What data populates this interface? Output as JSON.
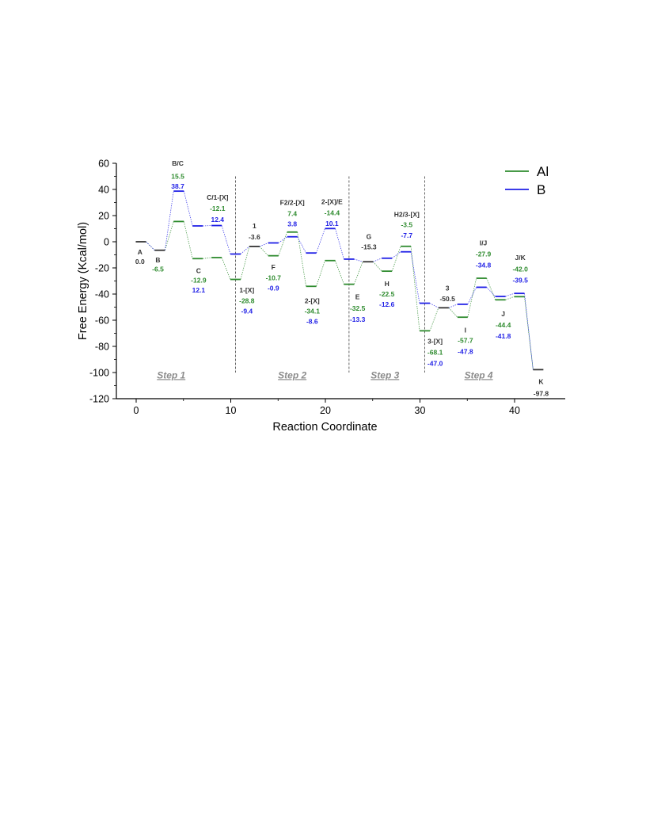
{
  "chart_data": {
    "type": "line",
    "title": "",
    "xlabel": "Reaction Coordinate",
    "ylabel": "Free Energy (Kcal/mol)",
    "xlim": [
      -1.5,
      45
    ],
    "ylim": [
      -120,
      60
    ],
    "xticks": [
      0,
      10,
      20,
      30,
      40
    ],
    "yticks": [
      60,
      40,
      20,
      0,
      -20,
      -40,
      -60,
      -80,
      -100,
      -120
    ],
    "step_dividers": [
      10.5,
      22.5,
      30.5
    ],
    "steps": [
      {
        "label": "Step 1",
        "x": 3.7,
        "y": -102
      },
      {
        "label": "Step 2",
        "x": 16.5,
        "y": -102
      },
      {
        "label": "Step 3",
        "x": 26.3,
        "y": -102
      },
      {
        "label": "Step 4",
        "x": 36.2,
        "y": -102
      }
    ],
    "colors": {
      "Al": "#2e8b2e",
      "B": "#1f1fe6",
      "common": "#333333"
    },
    "legend": {
      "placement": "top-right",
      "entries": [
        {
          "name": "Al",
          "color": "#2e8b2e"
        },
        {
          "name": "B",
          "color": "#1f1fe6"
        }
      ]
    },
    "series": [
      {
        "name": "Al",
        "color": "#2e8b2e",
        "levels": [
          {
            "x": 0.5,
            "y": 0
          },
          {
            "x": 2.5,
            "y": -6.5
          },
          {
            "x": 4.5,
            "y": 15.5
          },
          {
            "x": 6.5,
            "y": -12.9
          },
          {
            "x": 8.5,
            "y": -12.1
          },
          {
            "x": 10.5,
            "y": -28.8
          },
          {
            "x": 12.5,
            "y": -3.6
          },
          {
            "x": 14.5,
            "y": -10.7
          },
          {
            "x": 16.5,
            "y": 7.4
          },
          {
            "x": 18.5,
            "y": -34.1
          },
          {
            "x": 20.5,
            "y": -14.4
          },
          {
            "x": 22.5,
            "y": -32.5
          },
          {
            "x": 24.5,
            "y": -15.3
          },
          {
            "x": 26.5,
            "y": -22.5
          },
          {
            "x": 28.5,
            "y": -3.5
          },
          {
            "x": 30.5,
            "y": -68.1
          },
          {
            "x": 32.5,
            "y": -50.5
          },
          {
            "x": 34.5,
            "y": -57.7
          },
          {
            "x": 36.5,
            "y": -27.9
          },
          {
            "x": 38.5,
            "y": -44.4
          },
          {
            "x": 40.5,
            "y": -42.0
          },
          {
            "x": 42.5,
            "y": -97.8
          }
        ]
      },
      {
        "name": "B",
        "color": "#1f1fe6",
        "levels": [
          {
            "x": 0.5,
            "y": 0
          },
          {
            "x": 2.5,
            "y": -6.5
          },
          {
            "x": 4.5,
            "y": 38.7
          },
          {
            "x": 6.5,
            "y": 12.1
          },
          {
            "x": 8.5,
            "y": 12.4
          },
          {
            "x": 10.5,
            "y": -9.4
          },
          {
            "x": 12.5,
            "y": -3.6
          },
          {
            "x": 14.5,
            "y": -0.9
          },
          {
            "x": 16.5,
            "y": 3.8
          },
          {
            "x": 18.5,
            "y": -8.6
          },
          {
            "x": 20.5,
            "y": 10.1
          },
          {
            "x": 22.5,
            "y": -13.3
          },
          {
            "x": 24.5,
            "y": -15.3
          },
          {
            "x": 26.5,
            "y": -12.6
          },
          {
            "x": 28.5,
            "y": -7.7
          },
          {
            "x": 30.5,
            "y": -47.0
          },
          {
            "x": 32.5,
            "y": -50.5
          },
          {
            "x": 34.5,
            "y": -47.8
          },
          {
            "x": 36.5,
            "y": -34.8
          },
          {
            "x": 38.5,
            "y": -41.8
          },
          {
            "x": 40.5,
            "y": -39.5
          },
          {
            "x": 42.5,
            "y": -97.8
          }
        ]
      }
    ],
    "annotations": [
      {
        "text": "A",
        "x": 0.4,
        "y": -8,
        "color": "common"
      },
      {
        "text": "0.0",
        "x": 0.4,
        "y": -15,
        "color": "common"
      },
      {
        "text": "B",
        "x": 2.3,
        "y": -14,
        "color": "common"
      },
      {
        "text": "-6.5",
        "x": 2.3,
        "y": -21,
        "color": "Al"
      },
      {
        "text": "B/C",
        "x": 4.4,
        "y": 60,
        "color": "common"
      },
      {
        "text": "15.5",
        "x": 4.4,
        "y": 50,
        "color": "Al"
      },
      {
        "text": "38.7",
        "x": 4.4,
        "y": 42.5,
        "color": "B"
      },
      {
        "text": "C/1-[X]",
        "x": 8.6,
        "y": 34,
        "color": "common"
      },
      {
        "text": "-12.1",
        "x": 8.6,
        "y": 25.5,
        "color": "Al"
      },
      {
        "text": "12.4",
        "x": 8.6,
        "y": 17,
        "color": "B"
      },
      {
        "text": "C",
        "x": 6.6,
        "y": -22,
        "color": "common"
      },
      {
        "text": "-12.9",
        "x": 6.6,
        "y": -29.5,
        "color": "Al"
      },
      {
        "text": "12.1",
        "x": 6.6,
        "y": -37,
        "color": "B"
      },
      {
        "text": "1",
        "x": 12.5,
        "y": 12,
        "color": "common"
      },
      {
        "text": "-3.6",
        "x": 12.5,
        "y": 3.5,
        "color": "common"
      },
      {
        "text": "1-[X]",
        "x": 11.7,
        "y": -37,
        "color": "common"
      },
      {
        "text": "-28.8",
        "x": 11.7,
        "y": -45,
        "color": "Al"
      },
      {
        "text": "-9.4",
        "x": 11.7,
        "y": -53,
        "color": "B"
      },
      {
        "text": "F",
        "x": 14.5,
        "y": -19.5,
        "color": "common"
      },
      {
        "text": "-10.7",
        "x": 14.5,
        "y": -27.5,
        "color": "Al"
      },
      {
        "text": "-0.9",
        "x": 14.5,
        "y": -35.5,
        "color": "B"
      },
      {
        "text": "F2/2-[X]",
        "x": 16.5,
        "y": 30,
        "color": "common"
      },
      {
        "text": "7.4",
        "x": 16.5,
        "y": 21.5,
        "color": "Al"
      },
      {
        "text": "3.8",
        "x": 16.5,
        "y": 13.5,
        "color": "B"
      },
      {
        "text": "2-[X]",
        "x": 18.6,
        "y": -45,
        "color": "common"
      },
      {
        "text": "-34.1",
        "x": 18.6,
        "y": -53,
        "color": "Al"
      },
      {
        "text": "-8.6",
        "x": 18.6,
        "y": -61,
        "color": "B"
      },
      {
        "text": "2-[X]/E",
        "x": 20.7,
        "y": 30.5,
        "color": "common"
      },
      {
        "text": "-14.4",
        "x": 20.7,
        "y": 22,
        "color": "Al"
      },
      {
        "text": "10.1",
        "x": 20.7,
        "y": 14,
        "color": "B"
      },
      {
        "text": "E",
        "x": 23.4,
        "y": -42,
        "color": "common"
      },
      {
        "text": "-32.5",
        "x": 23.4,
        "y": -51,
        "color": "Al"
      },
      {
        "text": "-13.3",
        "x": 23.4,
        "y": -59.5,
        "color": "B"
      },
      {
        "text": "G",
        "x": 24.6,
        "y": 4,
        "color": "common"
      },
      {
        "text": "-15.3",
        "x": 24.6,
        "y": -4,
        "color": "common"
      },
      {
        "text": "H",
        "x": 26.5,
        "y": -32,
        "color": "common"
      },
      {
        "text": "-22.5",
        "x": 26.5,
        "y": -40,
        "color": "Al"
      },
      {
        "text": "-12.6",
        "x": 26.5,
        "y": -48,
        "color": "B"
      },
      {
        "text": "H2/3-[X]",
        "x": 28.6,
        "y": 21,
        "color": "common"
      },
      {
        "text": "-3.5",
        "x": 28.6,
        "y": 13,
        "color": "Al"
      },
      {
        "text": "-7.7",
        "x": 28.6,
        "y": 5,
        "color": "B"
      },
      {
        "text": "3-[X]",
        "x": 31.6,
        "y": -76,
        "color": "common"
      },
      {
        "text": "-68.1",
        "x": 31.6,
        "y": -84.5,
        "color": "Al"
      },
      {
        "text": "-47.0",
        "x": 31.6,
        "y": -93,
        "color": "B"
      },
      {
        "text": "3",
        "x": 32.9,
        "y": -35.5,
        "color": "common"
      },
      {
        "text": "-50.5",
        "x": 32.9,
        "y": -43.5,
        "color": "common"
      },
      {
        "text": "I",
        "x": 34.8,
        "y": -67.5,
        "color": "common"
      },
      {
        "text": "-57.7",
        "x": 34.8,
        "y": -75.5,
        "color": "Al"
      },
      {
        "text": "-47.8",
        "x": 34.8,
        "y": -84,
        "color": "B"
      },
      {
        "text": "I/J",
        "x": 36.7,
        "y": -1,
        "color": "common"
      },
      {
        "text": "-27.9",
        "x": 36.7,
        "y": -9.5,
        "color": "Al"
      },
      {
        "text": "-34.8",
        "x": 36.7,
        "y": -18,
        "color": "B"
      },
      {
        "text": "J",
        "x": 38.8,
        "y": -55,
        "color": "common"
      },
      {
        "text": "-44.4",
        "x": 38.8,
        "y": -63.5,
        "color": "Al"
      },
      {
        "text": "-41.8",
        "x": 38.8,
        "y": -72,
        "color": "B"
      },
      {
        "text": "J/K",
        "x": 40.6,
        "y": -12,
        "color": "common"
      },
      {
        "text": "-42.0",
        "x": 40.6,
        "y": -21,
        "color": "Al"
      },
      {
        "text": "-39.5",
        "x": 40.6,
        "y": -29.5,
        "color": "B"
      },
      {
        "text": "K",
        "x": 42.8,
        "y": -107,
        "color": "common"
      },
      {
        "text": "-97.8",
        "x": 42.8,
        "y": -116,
        "color": "common"
      }
    ]
  }
}
